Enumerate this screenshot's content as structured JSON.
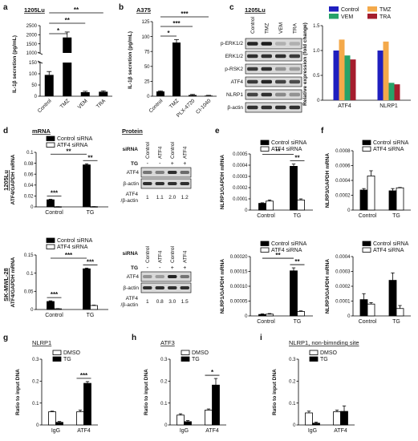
{
  "chart_data": [
    {
      "id": "a",
      "type": "bar",
      "panel_label": "a",
      "title": "1205Lu",
      "ylabel": "IL-1β secretion (pg/mL)",
      "categories": [
        "Control",
        "TMZ",
        "VEM",
        "TRA"
      ],
      "values": [
        95,
        1850,
        18,
        20
      ],
      "errors": [
        15,
        300,
        4,
        4
      ],
      "y_break": [
        200,
        1000
      ],
      "yticks_low": [
        0,
        50,
        100,
        150
      ],
      "yticks_high": [
        1000,
        1500,
        2000,
        2500
      ],
      "ylim": [
        0,
        2500
      ],
      "significance": [
        {
          "from": 0,
          "to": 1,
          "label": "*"
        },
        {
          "from": 0,
          "to": 2,
          "label": "**"
        },
        {
          "from": 0,
          "to": 3,
          "label": "**"
        }
      ]
    },
    {
      "id": "b",
      "type": "bar",
      "panel_label": "b",
      "title": "A375",
      "ylabel": "IL-1β secretion (pg/mL)",
      "categories": [
        "Control",
        "TMZ",
        "PLX-4720",
        "CI-1040"
      ],
      "values": [
        8,
        90,
        2,
        1
      ],
      "errors": [
        1,
        5,
        1,
        0.5
      ],
      "ylim": [
        0,
        125
      ],
      "yticks": [
        0,
        25,
        50,
        75,
        100,
        125
      ],
      "significance": [
        {
          "from": 0,
          "to": 1,
          "label": "*"
        },
        {
          "from": 0,
          "to": 2,
          "label": "***"
        },
        {
          "from": 0,
          "to": 3,
          "label": "***"
        }
      ]
    },
    {
      "id": "c-right",
      "type": "bar",
      "panel_label": "c",
      "ylabel": "Relative expression (fold change)",
      "categories": [
        "ATF4",
        "NLRP1"
      ],
      "series": [
        {
          "name": "Control",
          "color": "#1f1fbf",
          "values": [
            1.0,
            1.0
          ]
        },
        {
          "name": "TMZ",
          "color": "#f4a94a",
          "values": [
            1.22,
            1.18
          ]
        },
        {
          "name": "VEM",
          "color": "#26a269",
          "values": [
            0.9,
            0.35
          ]
        },
        {
          "name": "TRA",
          "color": "#a51d2d",
          "values": [
            0.82,
            0.32
          ]
        }
      ],
      "ylim": [
        0,
        1.5
      ],
      "yticks": [
        0,
        0.5,
        1.0,
        1.5
      ]
    },
    {
      "id": "d1",
      "type": "bar",
      "panel_label": "d",
      "title": "mRNA",
      "row_label": "1205Lu",
      "ylabel": "ATF4/GAPDH mRNA",
      "categories": [
        "Control",
        "TG"
      ],
      "series": [
        {
          "name": "Control siRNA",
          "color": "#000000",
          "values": [
            0.013,
            0.077
          ],
          "errors": [
            0.001,
            0.002
          ]
        },
        {
          "name": "ATF4 siRNA",
          "color": "#ffffff",
          "values": [
            0.0003,
            0.0004
          ],
          "errors": [
            0.0001,
            0.0001
          ]
        }
      ],
      "ylim": [
        0,
        0.1
      ],
      "yticks": [
        0,
        0.02,
        0.04,
        0.06,
        0.08,
        0.1
      ],
      "significance": [
        {
          "group": 0,
          "label": "***"
        },
        {
          "between_groups": true,
          "label": "**"
        },
        {
          "group": 1,
          "label": "**"
        }
      ]
    },
    {
      "id": "d2",
      "type": "bar",
      "row_label": "SK-MWL-28",
      "ylabel": "ATF4/GAPDH mRNA",
      "categories": [
        "Control",
        "TG"
      ],
      "series": [
        {
          "name": "Control siRNA",
          "color": "#000000",
          "values": [
            0.022,
            0.112
          ],
          "errors": [
            0.002,
            0.002
          ]
        },
        {
          "name": "ATF4 siRNA",
          "color": "#ffffff",
          "values": [
            0.002,
            0.011
          ],
          "errors": [
            0.0005,
            0.001
          ]
        }
      ],
      "ylim": [
        0,
        0.15
      ],
      "yticks": [
        0,
        0.05,
        0.1,
        0.15
      ],
      "significance": [
        {
          "group": 0,
          "label": "***"
        },
        {
          "between_groups": true,
          "label": "***"
        },
        {
          "group": 1,
          "label": "***"
        }
      ]
    },
    {
      "id": "e1",
      "type": "bar",
      "panel_label": "e",
      "ylabel": "NLRP1/GAPDH mRNA",
      "categories": [
        "Control",
        "TG"
      ],
      "series": [
        {
          "name": "Control siRNA",
          "color": "#000000",
          "values": [
            6e-05,
            0.00039
          ],
          "errors": [
            5e-06,
            2e-05
          ]
        },
        {
          "name": "ATF4 siRNA",
          "color": "#ffffff",
          "values": [
            8e-05,
            9e-05
          ],
          "errors": [
            1e-05,
            1e-05
          ]
        }
      ],
      "ylim": [
        0,
        0.0005
      ],
      "yticks": [
        0,
        0.0001,
        0.0002,
        0.0003,
        0.0004,
        0.0005
      ],
      "ytick_labels": [
        "0",
        "0.0001",
        "0.0002",
        "0.0003",
        "0.0004",
        "0.0005"
      ],
      "significance": [
        {
          "between_groups": true,
          "label": "**"
        },
        {
          "group": 1,
          "label": "**"
        }
      ]
    },
    {
      "id": "e2",
      "type": "bar",
      "ylabel": "NLRP1/GAPDH mRNA",
      "categories": [
        "Control",
        "TG"
      ],
      "series": [
        {
          "name": "Control siRNA",
          "color": "#000000",
          "values": [
            5e-06,
            0.000152
          ],
          "errors": [
            2e-06,
            1e-05
          ]
        },
        {
          "name": "ATF4 siRNA",
          "color": "#ffffff",
          "values": [
            6e-06,
            1.5e-05
          ],
          "errors": [
            2e-06,
            2e-06
          ]
        }
      ],
      "ylim": [
        0,
        0.0002
      ],
      "yticks": [
        0,
        5e-05,
        0.0001,
        0.00015,
        0.0002
      ],
      "ytick_labels": [
        "0",
        "0.00005",
        "0.00010",
        "0.00015",
        "0.00020"
      ],
      "significance": [
        {
          "between_groups": true,
          "label": "**"
        },
        {
          "group": 1,
          "label": "**"
        }
      ]
    },
    {
      "id": "f1",
      "type": "bar",
      "panel_label": "f",
      "ylabel": "NLRP3/GAPDH mRNA",
      "categories": [
        "Control",
        "TG"
      ],
      "series": [
        {
          "name": "Control siRNA",
          "color": "#000000",
          "values": [
            0.00027,
            0.00026
          ],
          "errors": [
            2e-05,
            3e-05
          ]
        },
        {
          "name": "ATF4 siRNA",
          "color": "#ffffff",
          "values": [
            0.00046,
            0.0003
          ],
          "errors": [
            7e-05,
            5e-06
          ]
        }
      ],
      "ylim": [
        0,
        0.0008
      ],
      "yticks": [
        0,
        0.0002,
        0.0004,
        0.0006,
        0.0008
      ],
      "ytick_labels": [
        "0",
        "0.0002",
        "0.0004",
        "0.0006",
        "0.0008"
      ]
    },
    {
      "id": "f2",
      "type": "bar",
      "ylabel": "NLRP3/GAPDH mRNA",
      "categories": [
        "Control",
        "TG"
      ],
      "series": [
        {
          "name": "Control siRNA",
          "color": "#000000",
          "values": [
            0.00011,
            0.00024
          ],
          "errors": [
            4e-05,
            5e-05
          ]
        },
        {
          "name": "ATF4 siRNA",
          "color": "#ffffff",
          "values": [
            8e-05,
            5e-05
          ],
          "errors": [
            1e-05,
            2e-05
          ]
        }
      ],
      "ylim": [
        0,
        0.0004
      ],
      "yticks": [
        0,
        0.0001,
        0.0002,
        0.0003,
        0.0004
      ],
      "ytick_labels": [
        "0",
        "0.0001",
        "0.0002",
        "0.0003",
        "0.0004"
      ]
    },
    {
      "id": "g",
      "type": "bar",
      "panel_label": "g",
      "title": "NLRP1",
      "ylabel": "Ratio to input DNA",
      "categories": [
        "IgG",
        "ATF4"
      ],
      "series": [
        {
          "name": "DMSO",
          "color": "#ffffff",
          "values": [
            0.06,
            0.06
          ],
          "errors": [
            0.003,
            0.008
          ]
        },
        {
          "name": "TG",
          "color": "#000000",
          "values": [
            0.012,
            0.19
          ],
          "errors": [
            0.004,
            0.008
          ]
        }
      ],
      "ylim": [
        0,
        0.3
      ],
      "yticks": [
        0,
        0.1,
        0.2,
        0.3
      ],
      "significance": [
        {
          "group": 1,
          "label": "***"
        }
      ]
    },
    {
      "id": "h",
      "type": "bar",
      "panel_label": "h",
      "title": "ATF3",
      "ylabel": "Ratio to input DNA",
      "categories": [
        "IgG",
        "ATF4"
      ],
      "series": [
        {
          "name": "DMSO",
          "color": "#ffffff",
          "values": [
            0.045,
            0.068
          ],
          "errors": [
            0.006,
            0.005
          ]
        },
        {
          "name": "TG",
          "color": "#000000",
          "values": [
            0.015,
            0.182
          ],
          "errors": [
            0.005,
            0.03
          ]
        }
      ],
      "ylim": [
        0,
        0.3
      ],
      "yticks": [
        0,
        0.1,
        0.2,
        0.3
      ],
      "significance": [
        {
          "group": 1,
          "label": "*"
        }
      ]
    },
    {
      "id": "i",
      "type": "bar",
      "panel_label": "i",
      "title": "NLRP1, non-bimnding site",
      "ylabel": "Ratio to input DNA",
      "categories": [
        "IgG",
        "ATF4"
      ],
      "series": [
        {
          "name": "DMSO",
          "color": "#ffffff",
          "values": [
            0.055,
            0.06
          ],
          "errors": [
            0.008,
            0.008
          ]
        },
        {
          "name": "TG",
          "color": "#000000",
          "values": [
            0.008,
            0.062
          ],
          "errors": [
            0.005,
            0.025
          ]
        }
      ],
      "ylim": [
        0,
        0.3
      ],
      "yticks": [
        0,
        0.1,
        0.2,
        0.3
      ]
    }
  ],
  "blots": {
    "c": {
      "title": "1205Lu",
      "columns": [
        "Control",
        "TMZ",
        "VEM",
        "TRA"
      ],
      "rows": [
        "p-ERK1/2",
        "ERK1/2",
        "p-RSK2",
        "ATF4",
        "NLRP1",
        "β-actin"
      ]
    },
    "d_protein_title": "Protein",
    "d1": {
      "sirna_label": "siRNA",
      "tg_label": "TG",
      "sirna": [
        "Control",
        "ATF4",
        "Control",
        "ATF4"
      ],
      "tg": [
        "-",
        "-",
        "+",
        "+"
      ],
      "rows": [
        "ATF4",
        "β-actin"
      ],
      "quant_label_top": "ATF4",
      "quant_label_bottom": "/β-actin",
      "quant": [
        "1",
        "1.1",
        "2.0",
        "1.2"
      ]
    },
    "d2": {
      "sirna_label": "siRNA",
      "tg_label": "TG",
      "sirna": [
        "Control",
        "ATF4",
        "Control",
        "ATF4"
      ],
      "tg": [
        "-",
        "-",
        "+",
        "+"
      ],
      "rows": [
        "ATF4",
        "β-actin"
      ],
      "quant_label_top": "ATF4",
      "quant_label_bottom": "/β-actin",
      "quant": [
        "1",
        "0.8",
        "3.0",
        "1.5"
      ]
    }
  }
}
